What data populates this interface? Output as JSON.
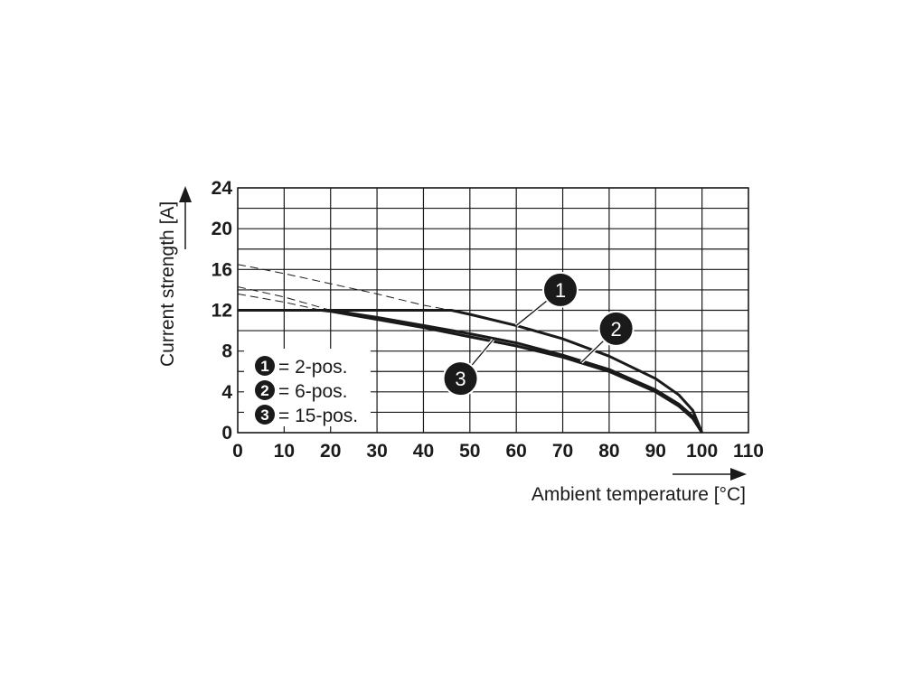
{
  "chart_data": {
    "type": "line",
    "xlabel": "Ambient temperature [°C]",
    "ylabel": "Current strength [A]",
    "xlim": [
      0,
      110
    ],
    "ylim": [
      0,
      24
    ],
    "x_ticks": [
      0,
      10,
      20,
      30,
      40,
      50,
      60,
      70,
      80,
      90,
      100,
      110
    ],
    "y_ticks": [
      0,
      4,
      8,
      12,
      16,
      20,
      24
    ],
    "grid": true,
    "y_minor_step": 2,
    "legend_position": "bottom-left",
    "series": [
      {
        "id": "1",
        "name": "2-pos.",
        "style": "solid",
        "points": [
          [
            0,
            12
          ],
          [
            46,
            12
          ],
          [
            50,
            11.6
          ],
          [
            60,
            10.5
          ],
          [
            70,
            9.2
          ],
          [
            80,
            7.5
          ],
          [
            90,
            5.3
          ],
          [
            95,
            3.7
          ],
          [
            98,
            2.2
          ],
          [
            100,
            0
          ]
        ],
        "extrapolated": [
          [
            0,
            16.5
          ],
          [
            10,
            15.6
          ],
          [
            20,
            14.6
          ],
          [
            30,
            13.6
          ],
          [
            40,
            12.5
          ],
          [
            46,
            12
          ]
        ]
      },
      {
        "id": "2",
        "name": "6-pos.",
        "style": "solid",
        "points": [
          [
            0,
            12
          ],
          [
            20,
            12
          ],
          [
            30,
            11.3
          ],
          [
            40,
            10.5
          ],
          [
            50,
            9.7
          ],
          [
            60,
            8.8
          ],
          [
            70,
            7.6
          ],
          [
            80,
            6.2
          ],
          [
            90,
            4.2
          ],
          [
            95,
            2.8
          ],
          [
            98,
            1.6
          ],
          [
            100,
            0
          ]
        ],
        "extrapolated": [
          [
            0,
            14.3
          ],
          [
            10,
            13.3
          ],
          [
            20,
            12
          ]
        ]
      },
      {
        "id": "3",
        "name": "15-pos.",
        "style": "solid",
        "points": [
          [
            0,
            12
          ],
          [
            18,
            12
          ],
          [
            20,
            11.9
          ],
          [
            30,
            11.1
          ],
          [
            40,
            10.3
          ],
          [
            50,
            9.4
          ],
          [
            60,
            8.5
          ],
          [
            70,
            7.4
          ],
          [
            80,
            6.0
          ],
          [
            90,
            4.0
          ],
          [
            95,
            2.6
          ],
          [
            98,
            1.4
          ],
          [
            100,
            0
          ]
        ],
        "extrapolated": [
          [
            0,
            13.6
          ],
          [
            10,
            12.8
          ],
          [
            18,
            12
          ]
        ]
      }
    ],
    "callouts": [
      {
        "id": "1",
        "label": "1",
        "at": [
          69.5,
          14.0
        ],
        "target": [
          60,
          10.5
        ]
      },
      {
        "id": "2",
        "label": "2",
        "at": [
          81.5,
          10.2
        ],
        "target": [
          74,
          6.9
        ]
      },
      {
        "id": "3",
        "label": "3",
        "at": [
          48,
          5.3
        ],
        "target": [
          55,
          9.1
        ]
      }
    ],
    "legend": [
      {
        "badge": "1",
        "text": "= 2-pos."
      },
      {
        "badge": "2",
        "text": "= 6-pos."
      },
      {
        "badge": "3",
        "text": "= 15-pos."
      }
    ]
  }
}
